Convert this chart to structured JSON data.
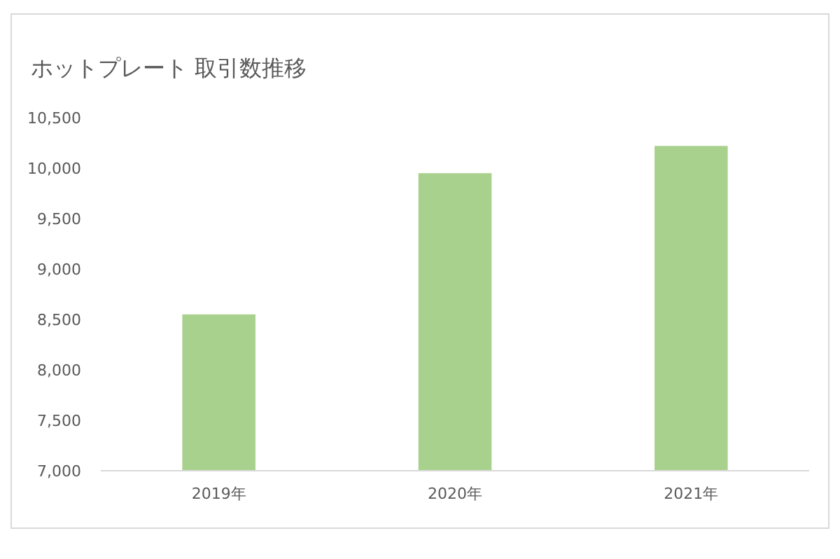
{
  "chart_data": {
    "type": "bar",
    "title": "ホットプレート 取引数推移",
    "categories": [
      "2019年",
      "2020年",
      "2021年"
    ],
    "values": [
      8550,
      9950,
      10220
    ],
    "color": "#a9d18e",
    "ylim": [
      7000,
      10500
    ],
    "yticks": [
      {
        "value": 7000,
        "label": "7,000"
      },
      {
        "value": 7500,
        "label": "7,500"
      },
      {
        "value": 8000,
        "label": "8,000"
      },
      {
        "value": 8500,
        "label": "8,500"
      },
      {
        "value": 9000,
        "label": "9,000"
      },
      {
        "value": 9500,
        "label": "9,500"
      },
      {
        "value": 10000,
        "label": "10,000"
      },
      {
        "value": 10500,
        "label": "10,500"
      }
    ],
    "grid": false
  }
}
